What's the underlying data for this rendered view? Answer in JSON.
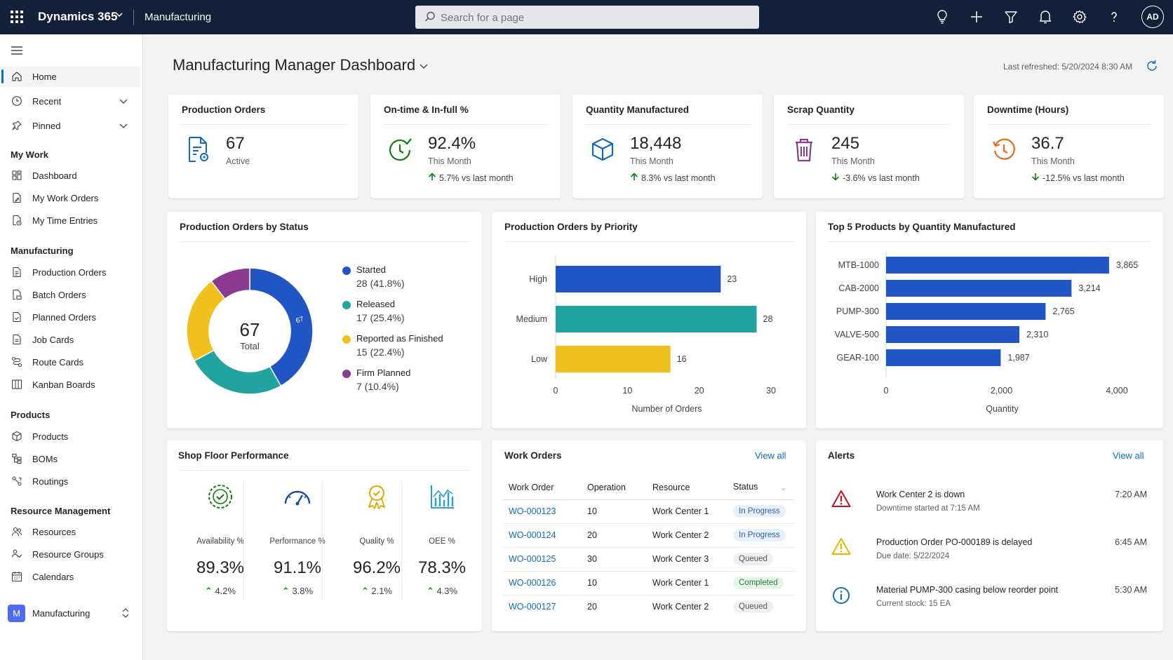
{
  "topbar": {
    "app_name": "Dynamics 365",
    "area": "Manufacturing",
    "search_placeholder": "Search for a page",
    "user_initials": "AD"
  },
  "sidebar": {
    "top_items": [
      {
        "label": "Home",
        "icon": "home-icon",
        "active": true
      },
      {
        "label": "Recent",
        "icon": "clock-icon",
        "expandable": true
      },
      {
        "label": "Pinned",
        "icon": "pin-icon",
        "expandable": true
      }
    ],
    "sections": [
      {
        "title": "My Work",
        "items": [
          {
            "label": "Dashboard",
            "icon": "dashboard-icon"
          },
          {
            "label": "My Work Orders",
            "icon": "document-edit-icon"
          },
          {
            "label": "My Time Entries",
            "icon": "document-clock-icon"
          }
        ]
      },
      {
        "title": "Manufacturing",
        "items": [
          {
            "label": "Production Orders",
            "icon": "document-list-icon"
          },
          {
            "label": "Batch Orders",
            "icon": "batch-icon"
          },
          {
            "label": "Planned Orders",
            "icon": "document-check-icon"
          },
          {
            "label": "Job Cards",
            "icon": "document-icon"
          },
          {
            "label": "Route Cards",
            "icon": "route-icon"
          },
          {
            "label": "Kanban Boards",
            "icon": "board-icon"
          }
        ]
      },
      {
        "title": "Products",
        "items": [
          {
            "label": "Products",
            "icon": "box-icon"
          },
          {
            "label": "BOMs",
            "icon": "hierarchy-icon"
          },
          {
            "label": "Routings",
            "icon": "routing-icon"
          }
        ]
      },
      {
        "title": "Resource Management",
        "items": [
          {
            "label": "Resources",
            "icon": "people-icon"
          },
          {
            "label": "Resource Groups",
            "icon": "people-group-icon"
          },
          {
            "label": "Calendars",
            "icon": "calendar-icon"
          }
        ]
      }
    ],
    "area_switcher": {
      "badge": "M",
      "label": "Manufacturing"
    }
  },
  "header": {
    "title": "Manufacturing Manager Dashboard",
    "last_refreshed": "Last refreshed: 5/20/2024 8:30 AM"
  },
  "kpis": [
    {
      "title": "Production Orders",
      "value": "67",
      "sub": "Active",
      "trend": "",
      "direction": "",
      "icon": "document-gear-icon",
      "color": "#0f6cbd"
    },
    {
      "title": "On-time & In-full %",
      "value": "92.4%",
      "sub": "This Month",
      "trend": "5.7%  vs last month",
      "direction": "up",
      "icon": "clock-check-icon",
      "color": "#107c10"
    },
    {
      "title": "Quantity Manufactured",
      "value": "18,448",
      "sub": "This Month",
      "trend": "8.3%  vs last month",
      "direction": "up",
      "icon": "cube-icon",
      "color": "#0f6cbd"
    },
    {
      "title": "Scrap Quantity",
      "value": "245",
      "sub": "This Month",
      "trend": "-3.6%  vs last month",
      "direction": "down",
      "icon": "trash-icon",
      "color": "#8a3a8f"
    },
    {
      "title": "Downtime (Hours)",
      "value": "36.7",
      "sub": "This Month",
      "trend": "-12.5%  vs last month",
      "direction": "down",
      "icon": "clock-history-icon",
      "color": "#e86a1a"
    }
  ],
  "charts": {
    "status_title": "Production Orders by Status",
    "priority_title": "Production Orders by Priority",
    "products_title": "Top 5 Products by Quantity Manufactured"
  },
  "chart_data": [
    {
      "type": "pie",
      "title": "Production Orders by Status",
      "center_value": "67",
      "center_label": "Total",
      "slice_label": "67",
      "categories": [
        "Started",
        "Released",
        "Reported as Finished",
        "Firm Planned"
      ],
      "values": [
        28,
        17,
        15,
        7
      ],
      "display": [
        "28 (41.8%)",
        "17 (25.4%)",
        "15 (22.4%)",
        "7 (10.4%)"
      ],
      "colors": [
        "#2255c4",
        "#22a39f",
        "#f2c01c",
        "#8a3a8f"
      ]
    },
    {
      "type": "bar",
      "title": "Production Orders by Priority",
      "orientation": "horizontal",
      "categories": [
        "High",
        "Medium",
        "Low"
      ],
      "values": [
        23,
        28,
        16
      ],
      "colors": [
        "#2255c4",
        "#22a39f",
        "#f2c01c"
      ],
      "xlabel": "Number of Orders",
      "xlim": [
        0,
        30
      ],
      "xticks": [
        "0",
        "10",
        "20",
        "30"
      ]
    },
    {
      "type": "bar",
      "title": "Top 5 Products by Quantity Manufactured",
      "orientation": "horizontal",
      "categories": [
        "MTB-1000",
        "CAB-2000",
        "PUMP-300",
        "VALVE-500",
        "GEAR-100"
      ],
      "values": [
        3865,
        3214,
        2765,
        2310,
        1987
      ],
      "value_labels": [
        "3,865",
        "3,214",
        "2,765",
        "2,310",
        "1,987"
      ],
      "colors": [
        "#2255c4"
      ],
      "xlabel": "Quantity",
      "xlim": [
        0,
        4000
      ],
      "xticks": [
        "0",
        "2,000",
        "4,000"
      ]
    }
  ],
  "shop_floor": {
    "title": "Shop Floor Performance",
    "metrics": [
      {
        "label": "Availability %",
        "value": "89.3%",
        "trend": "4.2%",
        "icon": "availability-icon",
        "color": "#107c10"
      },
      {
        "label": "Performance %",
        "value": "91.1%",
        "trend": "3.8%",
        "icon": "gauge-icon",
        "color": "#1a4fa0"
      },
      {
        "label": "Quality %",
        "value": "96.2%",
        "trend": "2.1%",
        "icon": "award-icon",
        "color": "#e8a400"
      },
      {
        "label": "OEE %",
        "value": "78.3%",
        "trend": "4.3%",
        "icon": "chart-icon",
        "color": "#2a9fd6"
      }
    ]
  },
  "work_orders": {
    "title": "Work Orders",
    "view_all": "View all",
    "columns": [
      "Work Order",
      "Operation",
      "Resource",
      "Status"
    ],
    "rows": [
      {
        "id": "WO-000123",
        "operation": "10",
        "resource": "Work Center 1",
        "status": "In Progress",
        "status_type": "prog"
      },
      {
        "id": "WO-000124",
        "operation": "20",
        "resource": "Work Center 2",
        "status": "In Progress",
        "status_type": "prog"
      },
      {
        "id": "WO-000125",
        "operation": "30",
        "resource": "Work Center 3",
        "status": "Queued",
        "status_type": "queue"
      },
      {
        "id": "WO-000126",
        "operation": "10",
        "resource": "Work Center 1",
        "status": "Completed",
        "status_type": "done"
      },
      {
        "id": "WO-000127",
        "operation": "20",
        "resource": "Work Center 2",
        "status": "Queued",
        "status_type": "queue"
      }
    ]
  },
  "alerts": {
    "title": "Alerts",
    "view_all": "View all",
    "items": [
      {
        "title": "Work Center 2 is down",
        "sub": "Downtime started at 7:15 AM",
        "time": "7:20 AM",
        "icon": "error-icon",
        "color": "#c50f1f"
      },
      {
        "title": "Production Order PO-000189 is delayed",
        "sub": "Due date: 5/22/2024",
        "time": "6:45 AM",
        "icon": "warning-icon",
        "color": "#e8b400"
      },
      {
        "title": "Material PUMP-300 casing below reorder point",
        "sub": "Current stock: 15 EA",
        "time": "5:30 AM",
        "icon": "info-icon",
        "color": "#0f6cbd"
      }
    ]
  }
}
